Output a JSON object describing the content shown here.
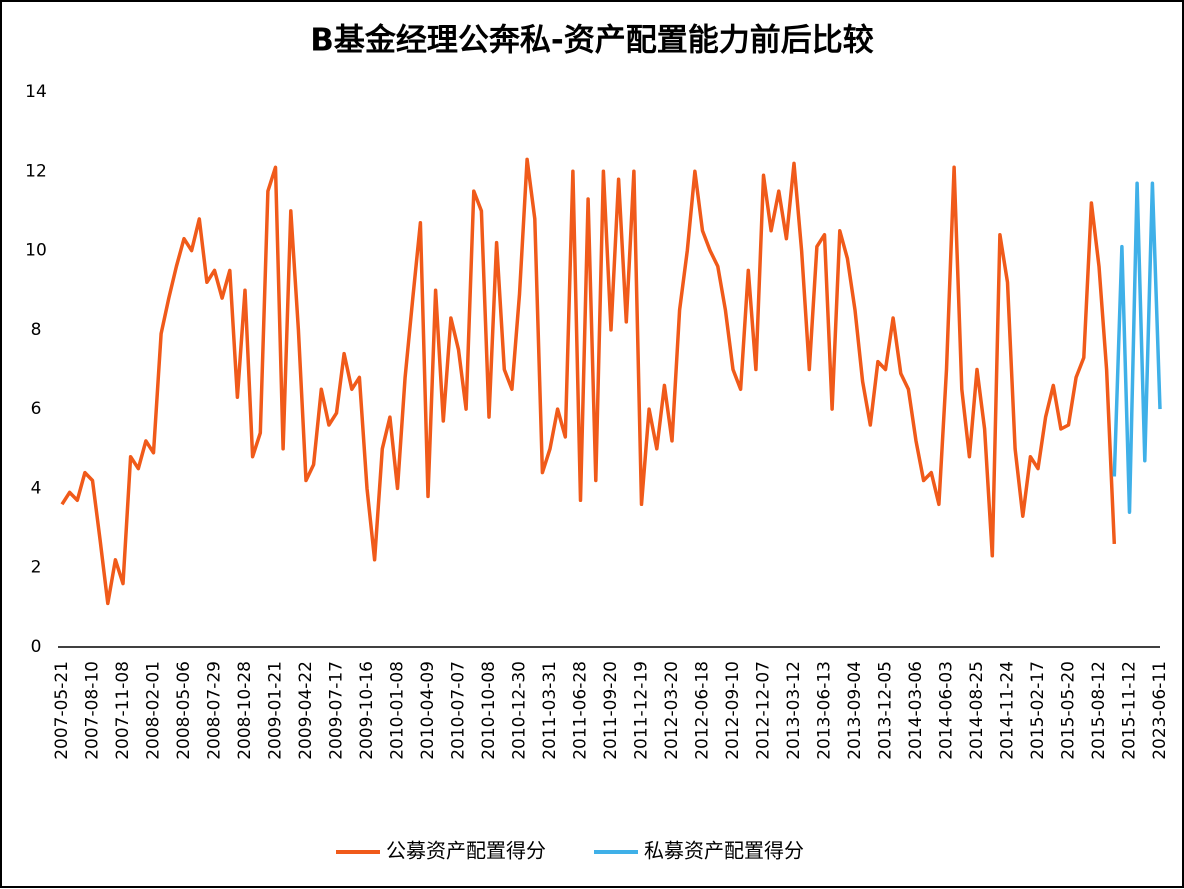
{
  "chart_data": {
    "type": "line",
    "title": "B基金经理公奔私-资产配置能力前后比较",
    "categories": [
      "2007-05-21",
      null,
      null,
      null,
      "2007-08-10",
      null,
      null,
      null,
      "2007-11-08",
      null,
      null,
      null,
      "2008-02-01",
      null,
      null,
      null,
      "2008-05-06",
      null,
      null,
      null,
      "2008-07-29",
      null,
      null,
      null,
      "2008-10-28",
      null,
      null,
      null,
      "2009-01-21",
      null,
      null,
      null,
      "2009-04-22",
      null,
      null,
      null,
      "2009-07-17",
      null,
      null,
      null,
      "2009-10-16",
      null,
      null,
      null,
      "2010-01-08",
      null,
      null,
      null,
      "2010-04-09",
      null,
      null,
      null,
      "2010-07-07",
      null,
      null,
      null,
      "2010-10-08",
      null,
      null,
      null,
      "2010-12-30",
      null,
      null,
      null,
      "2011-03-31",
      null,
      null,
      null,
      "2011-06-28",
      null,
      null,
      null,
      "2011-09-20",
      null,
      null,
      null,
      "2011-12-19",
      null,
      null,
      null,
      "2012-03-20",
      null,
      null,
      null,
      "2012-06-18",
      null,
      null,
      null,
      "2012-09-10",
      null,
      null,
      null,
      "2012-12-07",
      null,
      null,
      null,
      "2013-03-12",
      null,
      null,
      null,
      "2013-06-13",
      null,
      null,
      null,
      "2013-09-04",
      null,
      null,
      null,
      "2013-12-05",
      null,
      null,
      null,
      "2014-03-06",
      null,
      null,
      null,
      "2014-06-03",
      null,
      null,
      null,
      "2014-08-25",
      null,
      null,
      null,
      "2014-11-24",
      null,
      null,
      null,
      "2015-02-17",
      null,
      null,
      null,
      "2015-05-20",
      null,
      null,
      null,
      "2015-08-12",
      null,
      null,
      null,
      "2015-11-12",
      null,
      null,
      null,
      "2023-06-11"
    ],
    "series": [
      {
        "name": "公募资产配置得分",
        "color": "#f05a1a",
        "values": [
          3.6,
          3.9,
          3.7,
          4.4,
          4.2,
          2.7,
          1.1,
          2.2,
          1.6,
          4.8,
          4.5,
          5.2,
          4.9,
          7.9,
          8.8,
          9.6,
          10.3,
          10.0,
          10.8,
          9.2,
          9.5,
          8.8,
          9.5,
          6.3,
          9.0,
          4.8,
          5.4,
          11.5,
          12.1,
          5.0,
          11.0,
          8.0,
          4.2,
          4.6,
          6.5,
          5.6,
          5.9,
          7.4,
          6.5,
          6.8,
          4.0,
          2.2,
          5.0,
          5.8,
          4.0,
          6.8,
          8.8,
          10.7,
          3.8,
          9.0,
          5.7,
          8.3,
          7.5,
          6.0,
          11.5,
          11.0,
          5.8,
          10.2,
          7.0,
          6.5,
          8.9,
          12.3,
          10.8,
          4.4,
          5.0,
          6.0,
          5.3,
          12.0,
          3.7,
          11.3,
          4.2,
          12.0,
          8.0,
          11.8,
          8.2,
          12.0,
          3.6,
          6.0,
          5.0,
          6.6,
          5.2,
          8.5,
          10.0,
          12.0,
          10.5,
          10.0,
          9.6,
          8.5,
          7.0,
          6.5,
          9.5,
          7.0,
          11.9,
          10.5,
          11.5,
          10.3,
          12.2,
          10.0,
          7.0,
          10.1,
          10.4,
          6.0,
          10.5,
          9.8,
          8.5,
          6.7,
          5.6,
          7.2,
          7.0,
          8.3,
          6.9,
          6.5,
          5.2,
          4.2,
          4.4,
          3.6,
          7.0,
          12.1,
          6.5,
          4.8,
          7.0,
          5.5,
          2.3,
          10.4,
          9.2,
          5.0,
          3.3,
          4.8,
          4.5,
          5.8,
          6.6,
          5.5,
          5.6,
          6.8,
          7.3,
          11.2,
          9.6,
          7.0,
          2.6,
          null,
          null,
          null,
          null,
          null,
          null
        ]
      },
      {
        "name": "私募资产配置得分",
        "color": "#3fb0e8",
        "values": [
          null,
          null,
          null,
          null,
          null,
          null,
          null,
          null,
          null,
          null,
          null,
          null,
          null,
          null,
          null,
          null,
          null,
          null,
          null,
          null,
          null,
          null,
          null,
          null,
          null,
          null,
          null,
          null,
          null,
          null,
          null,
          null,
          null,
          null,
          null,
          null,
          null,
          null,
          null,
          null,
          null,
          null,
          null,
          null,
          null,
          null,
          null,
          null,
          null,
          null,
          null,
          null,
          null,
          null,
          null,
          null,
          null,
          null,
          null,
          null,
          null,
          null,
          null,
          null,
          null,
          null,
          null,
          null,
          null,
          null,
          null,
          null,
          null,
          null,
          null,
          null,
          null,
          null,
          null,
          null,
          null,
          null,
          null,
          null,
          null,
          null,
          null,
          null,
          null,
          null,
          null,
          null,
          null,
          null,
          null,
          null,
          null,
          null,
          null,
          null,
          null,
          null,
          null,
          null,
          null,
          null,
          null,
          null,
          null,
          null,
          null,
          null,
          null,
          null,
          null,
          null,
          null,
          null,
          null,
          null,
          null,
          null,
          null,
          null,
          null,
          null,
          null,
          null,
          null,
          null,
          null,
          null,
          null,
          null,
          null,
          null,
          null,
          null,
          4.3,
          10.1,
          3.4,
          11.7,
          4.7,
          11.7,
          6.0
        ]
      }
    ],
    "ylim": [
      0,
      14
    ],
    "yticks": [
      0,
      2,
      4,
      6,
      8,
      10,
      12,
      14
    ],
    "grid": false,
    "legend": "bottom"
  }
}
